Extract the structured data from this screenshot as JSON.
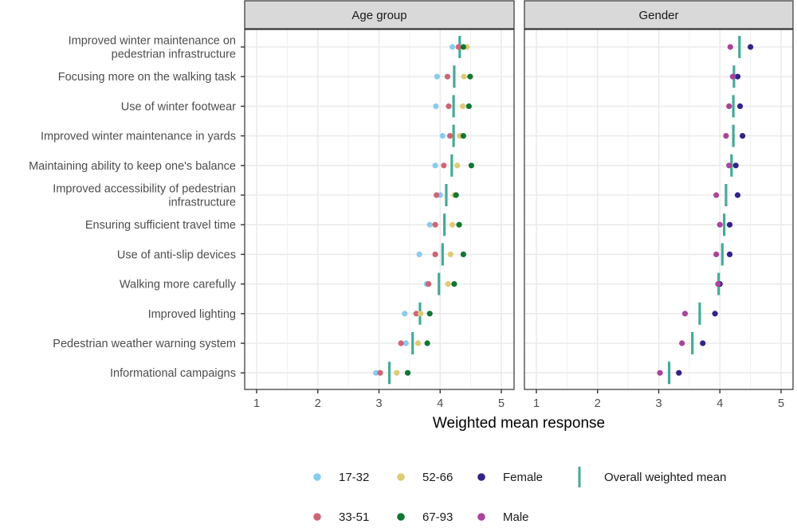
{
  "chart_data": {
    "type": "scatter",
    "subtype": "faceted dot plot",
    "xlabel": "Weighted mean response",
    "ylabel": "",
    "xlim": [
      0.8,
      5.2
    ],
    "xticks": [
      1,
      2,
      3,
      4,
      5
    ],
    "grid": true,
    "legend_position": "bottom",
    "categories": [
      "Improved winter maintenance on\npedestrian infrastructure",
      "Focusing more on the walking task",
      "Use of winter footwear",
      "Improved winter maintenance in yards",
      "Maintaining ability to keep one's balance",
      "Improved accessibility of pedestrian\ninfrastructure",
      "Ensuring sufficient travel time",
      "Use of anti-slip devices",
      "Walking more carefully",
      "Improved lighting",
      "Pedestrian weather warning system",
      "Informational campaigns"
    ],
    "overall_weighted_mean": [
      4.32,
      4.23,
      4.22,
      4.22,
      4.19,
      4.1,
      4.07,
      4.04,
      3.98,
      3.67,
      3.55,
      3.17
    ],
    "panels": [
      {
        "title": "Age group",
        "series": [
          {
            "name": "17-32",
            "color": "#88CCEE",
            "values": [
              4.2,
              3.95,
              3.93,
              4.04,
              3.92,
              4.0,
              3.83,
              3.66,
              3.78,
              3.42,
              3.44,
              2.95
            ]
          },
          {
            "name": "33-51",
            "color": "#CC6677",
            "values": [
              4.3,
              4.12,
              4.14,
              4.16,
              4.06,
              3.94,
              3.92,
              3.92,
              3.81,
              3.61,
              3.36,
              3.02
            ]
          },
          {
            "name": "52-66",
            "color": "#DDCC77",
            "values": [
              4.44,
              4.39,
              4.37,
              4.32,
              4.28,
              4.23,
              4.2,
              4.17,
              4.13,
              3.68,
              3.64,
              3.29
            ]
          },
          {
            "name": "67-93",
            "color": "#117733",
            "values": [
              4.38,
              4.49,
              4.47,
              4.38,
              4.51,
              4.26,
              4.31,
              4.38,
              4.23,
              3.83,
              3.79,
              3.47
            ]
          }
        ]
      },
      {
        "title": "Gender",
        "series": [
          {
            "name": "Female",
            "color": "#332288",
            "values": [
              4.5,
              4.29,
              4.33,
              4.37,
              4.26,
              4.29,
              4.16,
              4.16,
              4.0,
              3.92,
              3.72,
              3.33
            ]
          },
          {
            "name": "Male",
            "color": "#AA4499",
            "values": [
              4.17,
              4.21,
              4.15,
              4.1,
              4.15,
              3.94,
              4.0,
              3.94,
              3.97,
              3.43,
              3.38,
              3.02
            ]
          }
        ]
      }
    ],
    "mean_line": {
      "name": "Overall weighted mean",
      "color": "#44AA99"
    },
    "legend": [
      {
        "label": "17-32",
        "color": "#88CCEE",
        "shape": "dot"
      },
      {
        "label": "52-66",
        "color": "#DDCC77",
        "shape": "dot"
      },
      {
        "label": "Female",
        "color": "#332288",
        "shape": "dot"
      },
      {
        "label": "Overall weighted mean",
        "color": "#44AA99",
        "shape": "vline"
      },
      {
        "label": "33-51",
        "color": "#CC6677",
        "shape": "dot"
      },
      {
        "label": "67-93",
        "color": "#117733",
        "shape": "dot"
      },
      {
        "label": "Male",
        "color": "#AA4499",
        "shape": "dot"
      }
    ]
  }
}
